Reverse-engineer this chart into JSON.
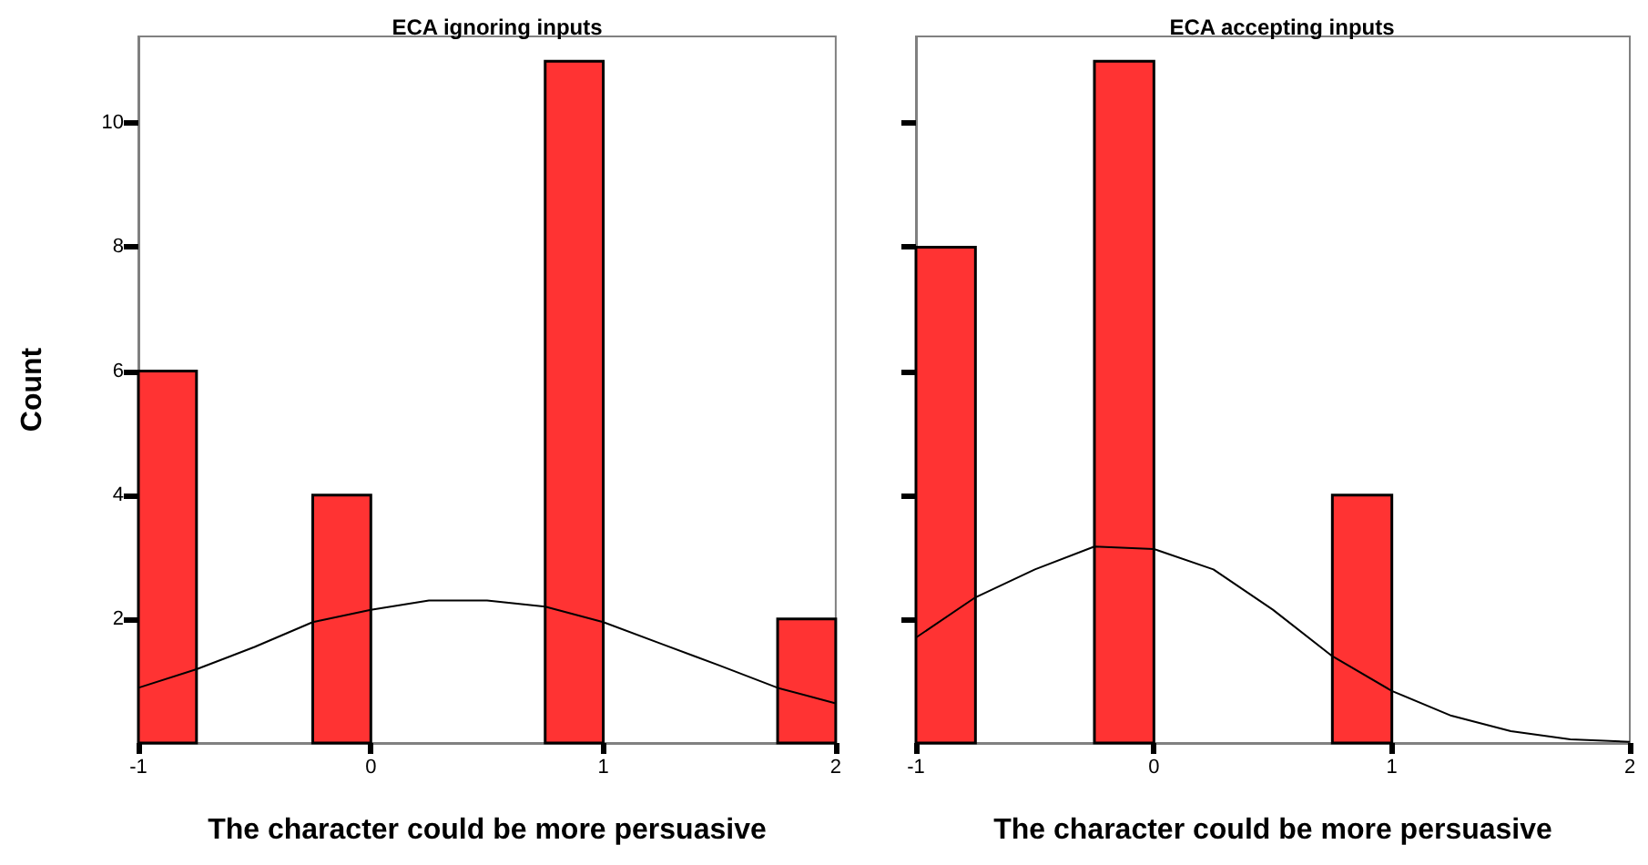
{
  "chart_data": [
    {
      "type": "histogram",
      "title": "ECA ignoring inputs",
      "xlabel": "The character could be more persuasive",
      "ylabel": "Count",
      "bins": [
        -1,
        -0.75,
        -0.5,
        -0.25,
        0,
        0.25,
        0.5,
        0.75,
        1,
        1.25,
        1.5,
        1.75,
        2
      ],
      "values": [
        6,
        0,
        0,
        4,
        0,
        0,
        0,
        11,
        0,
        0,
        0,
        2
      ],
      "color": "#ff3333",
      "xlim": [
        -1,
        2
      ],
      "xticks": [
        -1,
        0,
        1,
        2
      ],
      "ylim": [
        0,
        11.4
      ],
      "yticks": [
        2,
        4,
        6,
        8,
        10
      ],
      "marker": "none",
      "series": [
        {
          "type": "line",
          "color": "#000000",
          "x": [
            -1,
            -0.75,
            -0.5,
            -0.25,
            0,
            0.25,
            0.5,
            0.75,
            1,
            1.25,
            1.5,
            1.75,
            2
          ],
          "values": [
            0.89,
            1.19,
            1.55,
            1.95,
            2.15,
            2.3,
            2.3,
            2.2,
            1.95,
            1.6,
            1.25,
            0.89,
            0.64
          ]
        }
      ]
    },
    {
      "type": "histogram",
      "title": "ECA accepting inputs",
      "xlabel": "The character could be more persuasive",
      "bins": [
        -1,
        -0.75,
        -0.5,
        -0.25,
        0,
        0.25,
        0.5,
        0.75,
        1,
        1.25,
        1.5,
        1.75,
        2
      ],
      "values": [
        8,
        0,
        0,
        11,
        0,
        0,
        0,
        4,
        0,
        0,
        0,
        0
      ],
      "color": "#ff3333",
      "xlim": [
        -1,
        2
      ],
      "xticks": [
        -1,
        0,
        1,
        2
      ],
      "ylim": [
        0,
        11.4
      ],
      "yticks": [
        2,
        4,
        6,
        8,
        10
      ],
      "tick_labels": "x",
      "marker": "none",
      "series": [
        {
          "type": "line",
          "color": "#000000",
          "x": [
            -1,
            -0.75,
            -0.5,
            -0.25,
            0,
            0.25,
            0.5,
            0.75,
            1,
            1.25,
            1.5,
            1.75,
            2
          ],
          "values": [
            1.7,
            2.35,
            2.8,
            3.17,
            3.13,
            2.8,
            2.15,
            1.4,
            0.84,
            0.44,
            0.19,
            0.06,
            0.02
          ]
        }
      ]
    }
  ]
}
